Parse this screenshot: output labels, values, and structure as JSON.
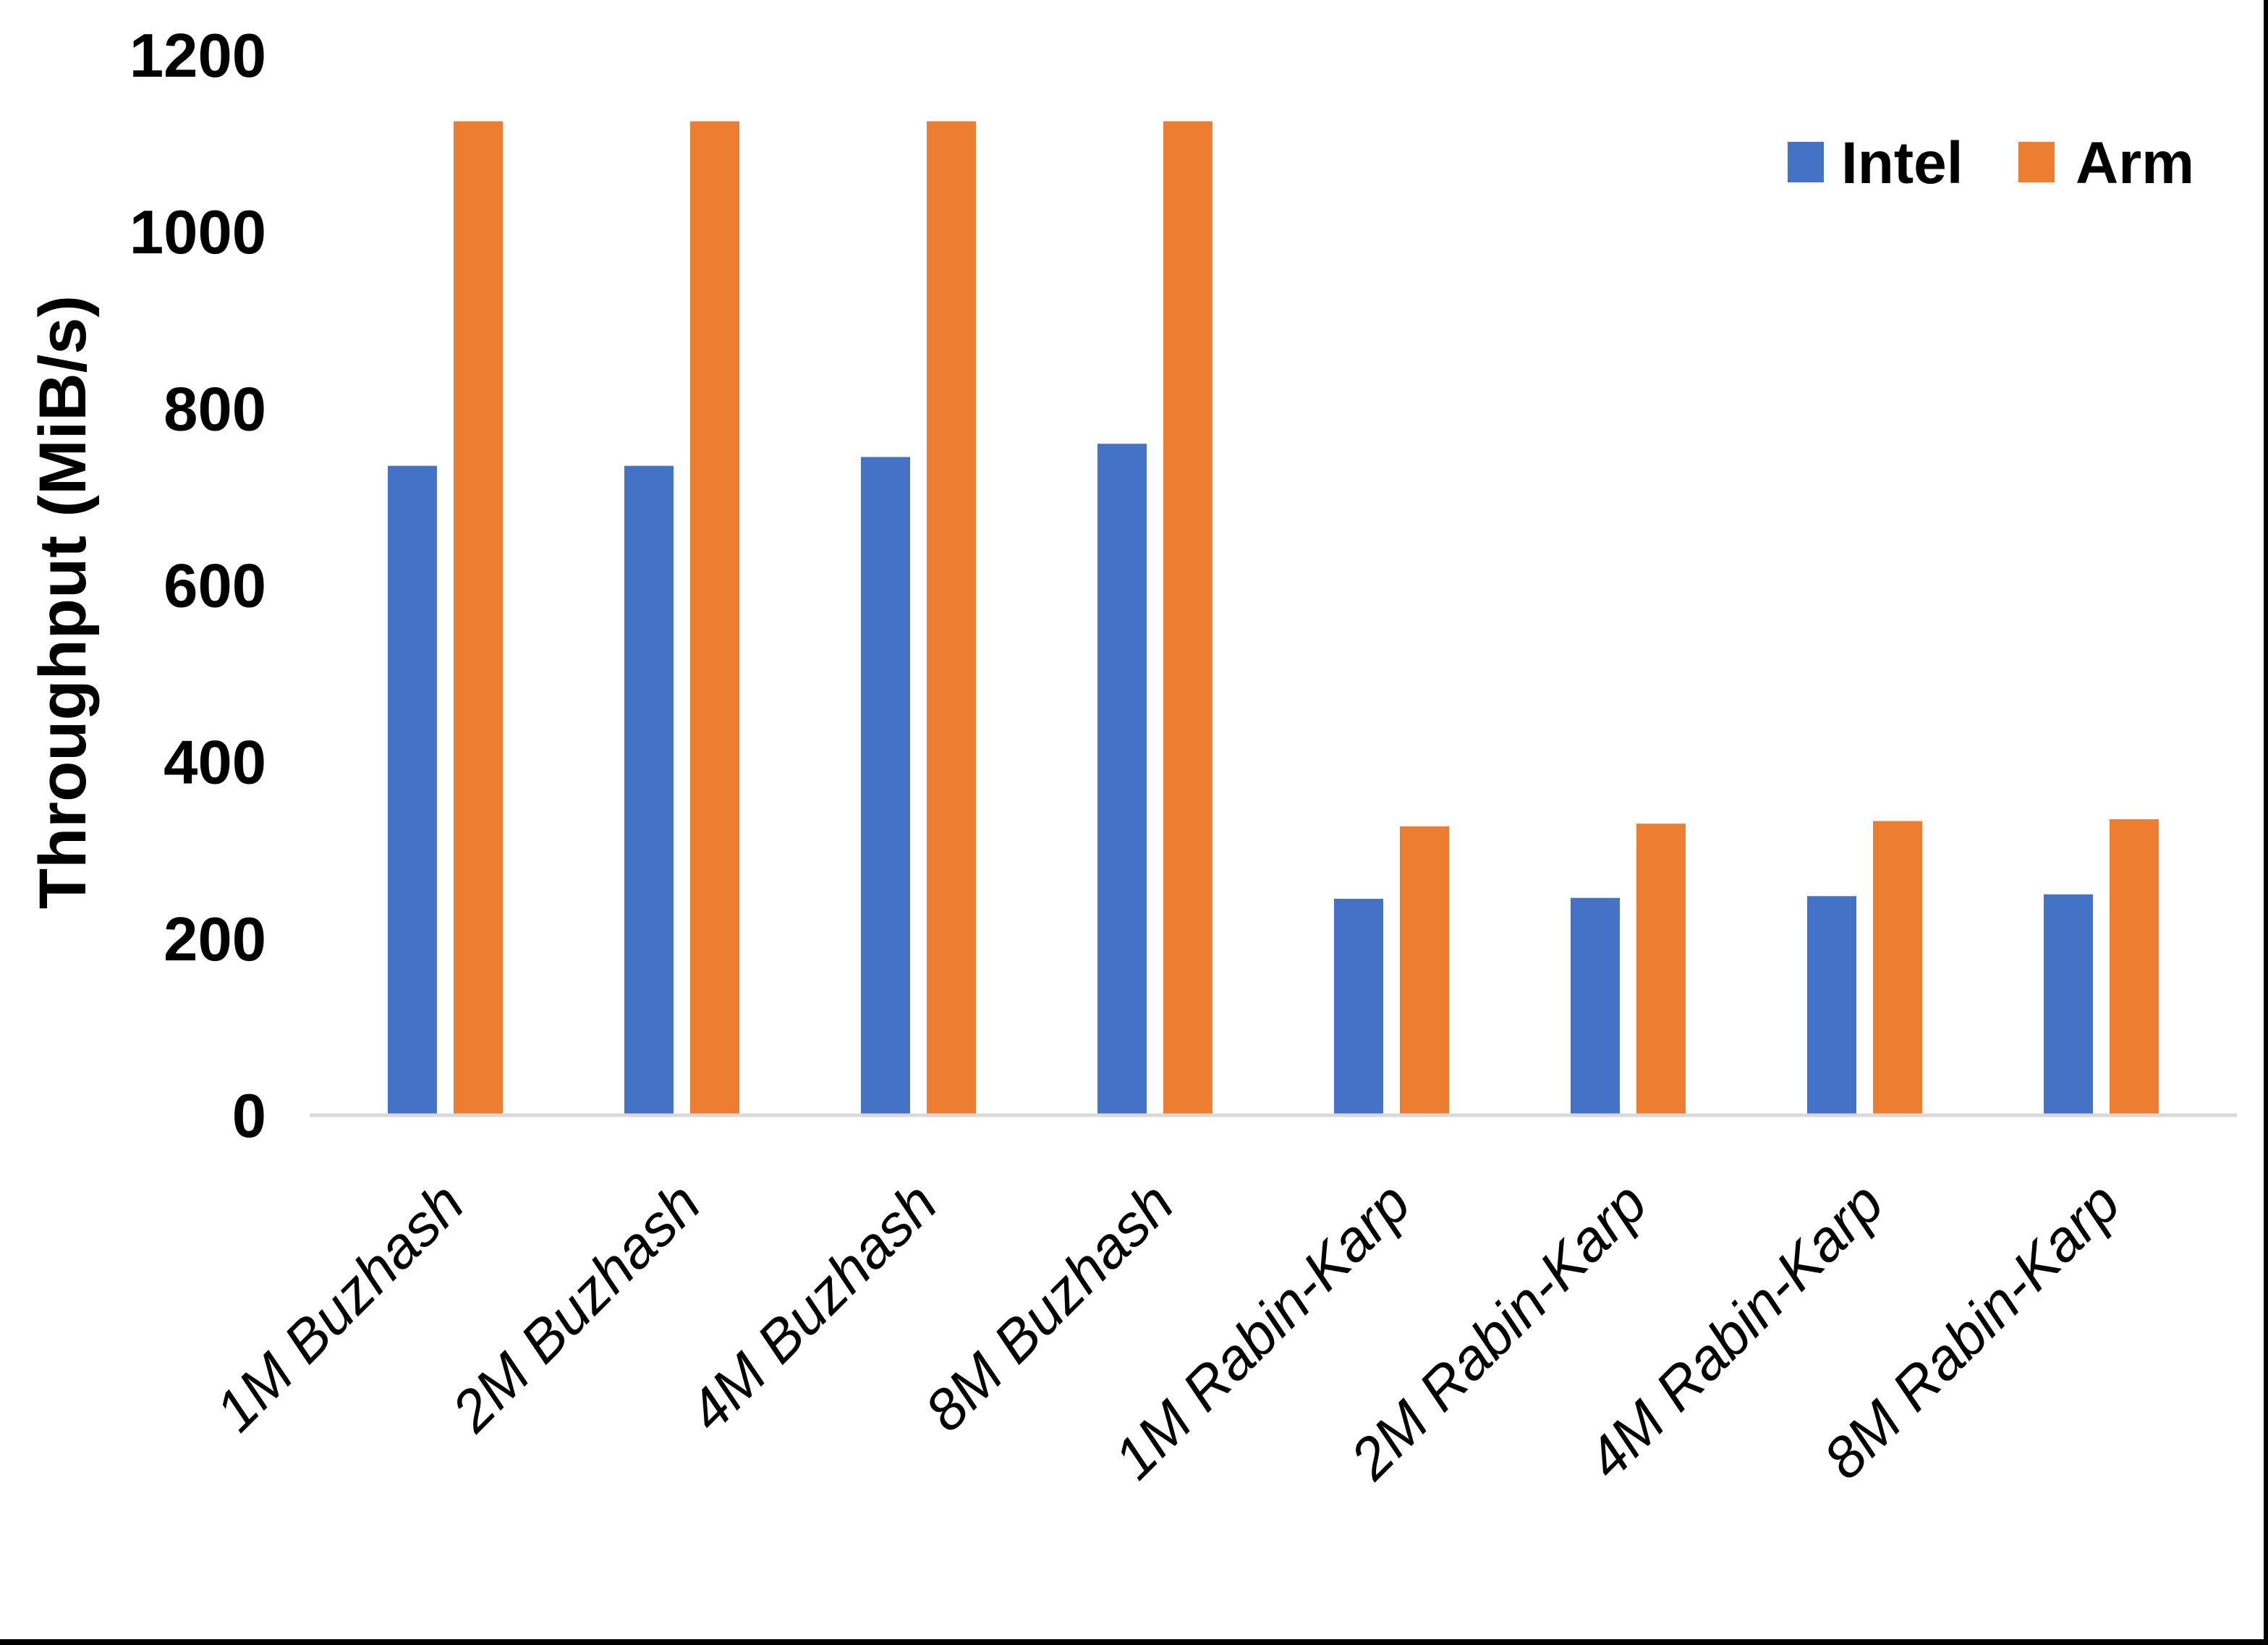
{
  "chart_data": {
    "type": "bar",
    "title": "",
    "ylabel": "Throughput (MiB/s)",
    "xlabel": "",
    "categories": [
      "1M Buzhash",
      "2M Buzhash",
      "4M Buzhash",
      "8M Buzhash",
      "1M Rabin-Karp",
      "2M Rabin-Karp",
      "4M Rabin-Karp",
      "8M Rabin-Karp"
    ],
    "series": [
      {
        "name": "Intel",
        "color": "#4472C4",
        "values": [
          735,
          735,
          745,
          760,
          245,
          246,
          248,
          250
        ]
      },
      {
        "name": "Arm",
        "color": "#ED7D31",
        "values": [
          1125,
          1125,
          1125,
          1125,
          327,
          330,
          333,
          335
        ]
      }
    ],
    "ylim": [
      0,
      1200
    ],
    "yticks": [
      "0",
      "200",
      "400",
      "600",
      "800",
      "1000",
      "1200"
    ],
    "grid": false,
    "legend_position": "top-right",
    "colors": {
      "axis_line": "#D9D9D9",
      "text": "#000000",
      "background": "#FFFFFF",
      "frame_edge": "#000000"
    }
  }
}
